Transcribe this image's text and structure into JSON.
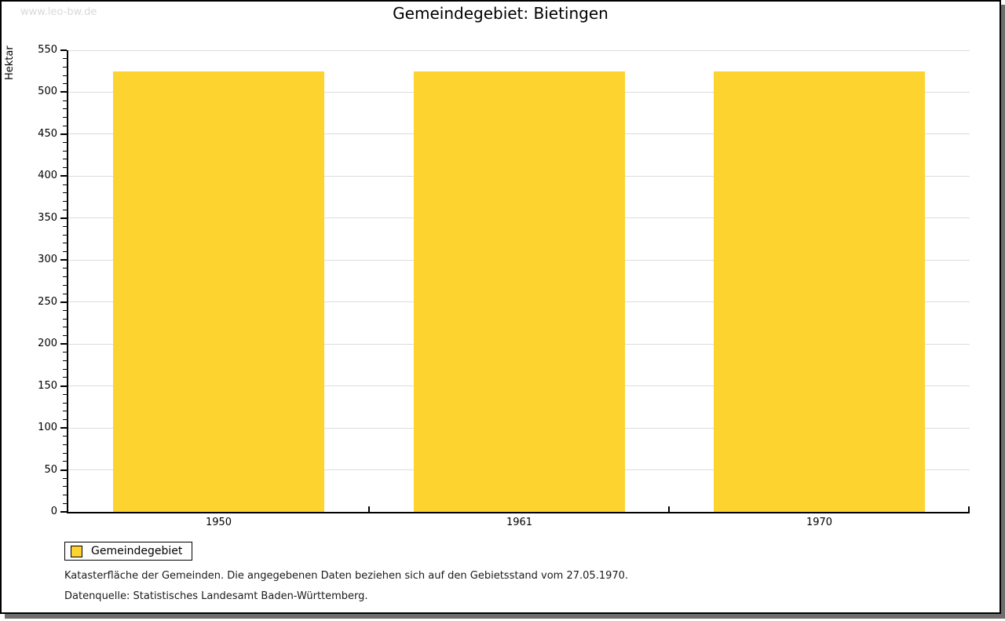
{
  "watermark": "www.leo-bw.de",
  "footnotes": [
    "Katasterfläche der Gemeinden. Die angegebenen Daten beziehen sich auf den Gebietsstand vom 27.05.1970.",
    "Datenquelle: Statistisches Landesamt Baden-Württemberg."
  ],
  "chart_data": {
    "type": "bar",
    "title": "Gemeindegebiet: Bietingen",
    "categories": [
      "1950",
      "1961",
      "1970"
    ],
    "series": [
      {
        "name": "Gemeindegebiet",
        "values": [
          525,
          525,
          525
        ]
      }
    ],
    "xlabel": "",
    "ylabel": "Hektar",
    "ylim": [
      0,
      550
    ],
    "ytick_step": 50,
    "minor_tick_step": 10,
    "grid": true,
    "legend_position": "bottom-left"
  },
  "colors": {
    "bar": "#FCD32F",
    "grid": "#DCDCDC",
    "axis": "#000000",
    "watermark": "#D9D9D9",
    "frame_border": "#000000",
    "shadow": "#6E6E6E"
  }
}
